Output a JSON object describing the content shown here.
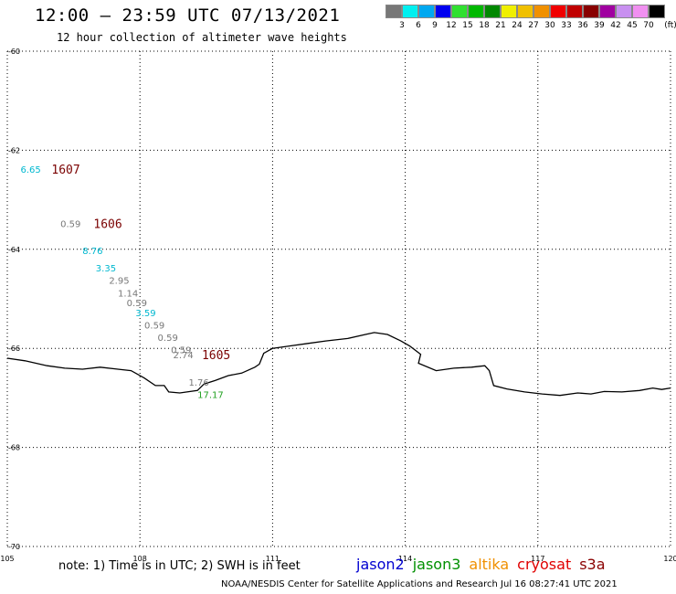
{
  "header": {
    "title": "12:00 – 23:59 UTC 07/13/2021",
    "subtitle": "12 hour collection of altimeter wave heights"
  },
  "colorbar": {
    "unit": "(ft)",
    "items": [
      {
        "label": "",
        "color": "#777777"
      },
      {
        "label": "3",
        "color": "#00f0f0"
      },
      {
        "label": "6",
        "color": "#00a8f0"
      },
      {
        "label": "9",
        "color": "#0000f0"
      },
      {
        "label": "12",
        "color": "#30e030"
      },
      {
        "label": "15",
        "color": "#00b800"
      },
      {
        "label": "18",
        "color": "#008800"
      },
      {
        "label": "21",
        "color": "#f0f000"
      },
      {
        "label": "24",
        "color": "#f0c000"
      },
      {
        "label": "27",
        "color": "#f09000"
      },
      {
        "label": "30",
        "color": "#f00000"
      },
      {
        "label": "33",
        "color": "#c00000"
      },
      {
        "label": "36",
        "color": "#880000"
      },
      {
        "label": "39",
        "color": "#a000a0"
      },
      {
        "label": "42",
        "color": "#c890f0"
      },
      {
        "label": "45",
        "color": "#f090f0"
      },
      {
        "label": "70",
        "color": "#000000"
      }
    ]
  },
  "map": {
    "lon_range": [
      105,
      120
    ],
    "lat_range": [
      -70,
      -60
    ],
    "lon_ticks": [
      "105",
      "108",
      "111",
      "114",
      "117",
      "120"
    ],
    "lat_ticks": [
      "-60",
      "-62",
      "-64",
      "-66",
      "-68",
      "-70"
    ],
    "measurements": [
      {
        "text": "6.65",
        "lon": 105.3,
        "lat": -62.45,
        "color": "#00b8d0"
      },
      {
        "text": "0.59",
        "lon": 106.2,
        "lat": -63.55,
        "color": "#777777"
      },
      {
        "text": "8.76",
        "lon": 106.7,
        "lat": -64.1,
        "color": "#00b8d0"
      },
      {
        "text": "3.35",
        "lon": 107.0,
        "lat": -64.45,
        "color": "#00b8d0"
      },
      {
        "text": "2.95",
        "lon": 107.3,
        "lat": -64.7,
        "color": "#777777"
      },
      {
        "text": "1.14",
        "lon": 107.5,
        "lat": -64.95,
        "color": "#777777"
      },
      {
        "text": "0.59",
        "lon": 107.7,
        "lat": -65.15,
        "color": "#777777"
      },
      {
        "text": "3.59",
        "lon": 107.9,
        "lat": -65.35,
        "color": "#00b8d0"
      },
      {
        "text": "0.59",
        "lon": 108.1,
        "lat": -65.6,
        "color": "#777777"
      },
      {
        "text": "0.59",
        "lon": 108.4,
        "lat": -65.85,
        "color": "#777777"
      },
      {
        "text": "0.59",
        "lon": 108.7,
        "lat": -66.1,
        "color": "#777777"
      },
      {
        "text": "2.74",
        "lon": 108.75,
        "lat": -66.2,
        "color": "#777777"
      },
      {
        "text": "1.76",
        "lon": 109.1,
        "lat": -66.75,
        "color": "#777777"
      },
      {
        "text": "17.17",
        "lon": 109.3,
        "lat": -67.0,
        "color": "#20a020"
      }
    ],
    "passes": [
      {
        "text": "1607",
        "lon": 106.0,
        "lat": -62.45,
        "color": "#7a0000"
      },
      {
        "text": "1606",
        "lon": 106.95,
        "lat": -63.55,
        "color": "#7a0000"
      },
      {
        "text": "1605",
        "lon": 109.4,
        "lat": -66.2,
        "color": "#7a0000"
      }
    ],
    "coastline": [
      [
        105.0,
        -66.2
      ],
      [
        105.4,
        -66.25
      ],
      [
        105.9,
        -66.35
      ],
      [
        106.3,
        -66.4
      ],
      [
        106.7,
        -66.42
      ],
      [
        107.1,
        -66.38
      ],
      [
        107.5,
        -66.42
      ],
      [
        107.8,
        -66.45
      ],
      [
        108.1,
        -66.6
      ],
      [
        108.35,
        -66.75
      ],
      [
        108.55,
        -66.75
      ],
      [
        108.65,
        -66.88
      ],
      [
        108.9,
        -66.9
      ],
      [
        109.3,
        -66.85
      ],
      [
        109.45,
        -66.72
      ],
      [
        109.7,
        -66.65
      ],
      [
        110.0,
        -66.55
      ],
      [
        110.3,
        -66.5
      ],
      [
        110.6,
        -66.38
      ],
      [
        110.7,
        -66.32
      ],
      [
        110.8,
        -66.1
      ],
      [
        111.0,
        -66.0
      ],
      [
        111.4,
        -65.95
      ],
      [
        111.8,
        -65.9
      ],
      [
        112.2,
        -65.85
      ],
      [
        112.7,
        -65.8
      ],
      [
        113.1,
        -65.72
      ],
      [
        113.3,
        -65.68
      ],
      [
        113.6,
        -65.72
      ],
      [
        113.9,
        -65.85
      ],
      [
        114.1,
        -65.95
      ],
      [
        114.35,
        -66.12
      ],
      [
        114.3,
        -66.3
      ],
      [
        114.7,
        -66.45
      ],
      [
        115.1,
        -66.4
      ],
      [
        115.5,
        -66.38
      ],
      [
        115.8,
        -66.35
      ],
      [
        115.9,
        -66.45
      ],
      [
        116.0,
        -66.75
      ],
      [
        116.3,
        -66.82
      ],
      [
        116.7,
        -66.88
      ],
      [
        117.1,
        -66.92
      ],
      [
        117.5,
        -66.95
      ],
      [
        117.9,
        -66.9
      ],
      [
        118.2,
        -66.92
      ],
      [
        118.5,
        -66.87
      ],
      [
        118.9,
        -66.88
      ],
      [
        119.3,
        -66.85
      ],
      [
        119.6,
        -66.8
      ],
      [
        119.8,
        -66.83
      ],
      [
        120.0,
        -66.8
      ]
    ]
  },
  "footer": {
    "note": "note: 1) Time is in UTC; 2) SWH is in feet",
    "legend": [
      {
        "name": "jason2",
        "color": "#0000d0"
      },
      {
        "name": "jason3",
        "color": "#009000"
      },
      {
        "name": "altika",
        "color": "#f09000"
      },
      {
        "name": "cryosat",
        "color": "#e00000"
      },
      {
        "name": "s3a",
        "color": "#8a0000"
      }
    ],
    "credit": "NOAA/NESDIS Center for Satellite Applications and Research    Jul 16 08:27:41 UTC 2021"
  }
}
